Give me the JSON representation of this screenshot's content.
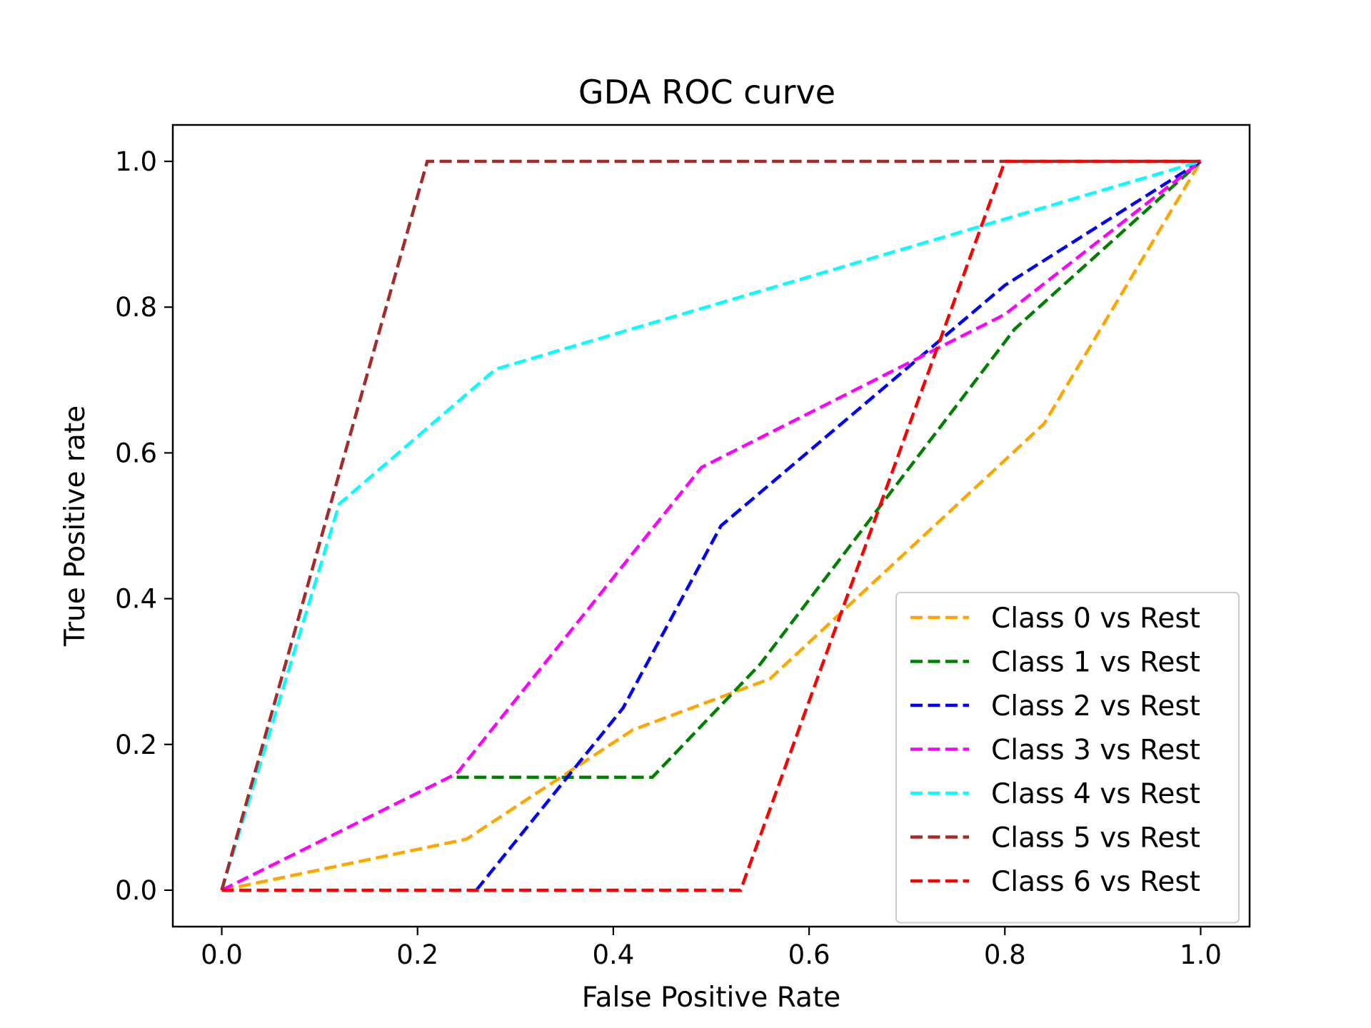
{
  "chart_data": {
    "type": "line",
    "title": "GDA ROC curve",
    "xlabel": "False Positive Rate",
    "ylabel": "True Positive rate",
    "xlim": [
      -0.05,
      1.05
    ],
    "ylim": [
      -0.05,
      1.05
    ],
    "xticks": [
      "0.0",
      "0.2",
      "0.4",
      "0.6",
      "0.8",
      "1.0"
    ],
    "yticks": [
      "0.0",
      "0.2",
      "0.4",
      "0.6",
      "0.8",
      "1.0"
    ],
    "grid": false,
    "legend_position": "lower-right",
    "line_style": "dashed",
    "series": [
      {
        "name": "Class 0 vs Rest",
        "color": "#FFA500",
        "x": [
          0.0,
          0.25,
          0.42,
          0.56,
          0.84,
          1.0
        ],
        "y": [
          0.0,
          0.07,
          0.22,
          0.29,
          0.64,
          1.0
        ]
      },
      {
        "name": "Class 1 vs Rest",
        "color": "#008000",
        "x": [
          0.24,
          0.44,
          0.55,
          0.81,
          1.0
        ],
        "y": [
          0.155,
          0.155,
          0.31,
          0.77,
          1.0
        ]
      },
      {
        "name": "Class 2 vs Rest",
        "color": "#0000FF",
        "x": [
          0.26,
          0.41,
          0.51,
          0.8,
          1.0
        ],
        "y": [
          0.0,
          0.25,
          0.5,
          0.83,
          1.0
        ]
      },
      {
        "name": "Class 3 vs Rest",
        "color": "#FF00FF",
        "x": [
          0.0,
          0.24,
          0.49,
          0.8,
          1.0
        ],
        "y": [
          0.0,
          0.16,
          0.58,
          0.79,
          1.0
        ]
      },
      {
        "name": "Class 4 vs Rest",
        "color": "#00FFFF",
        "x": [
          0.0,
          0.12,
          0.28,
          1.0
        ],
        "y": [
          0.0,
          0.53,
          0.715,
          1.0
        ]
      },
      {
        "name": "Class 5 vs Rest",
        "color": "#A52A2A",
        "x": [
          0.0,
          0.21,
          1.0
        ],
        "y": [
          0.0,
          1.0,
          1.0
        ]
      },
      {
        "name": "Class 6 vs Rest",
        "color": "#FF0000",
        "x": [
          0.0,
          0.53,
          0.8,
          1.0
        ],
        "y": [
          0.0,
          0.0,
          1.0,
          1.0
        ]
      }
    ]
  }
}
